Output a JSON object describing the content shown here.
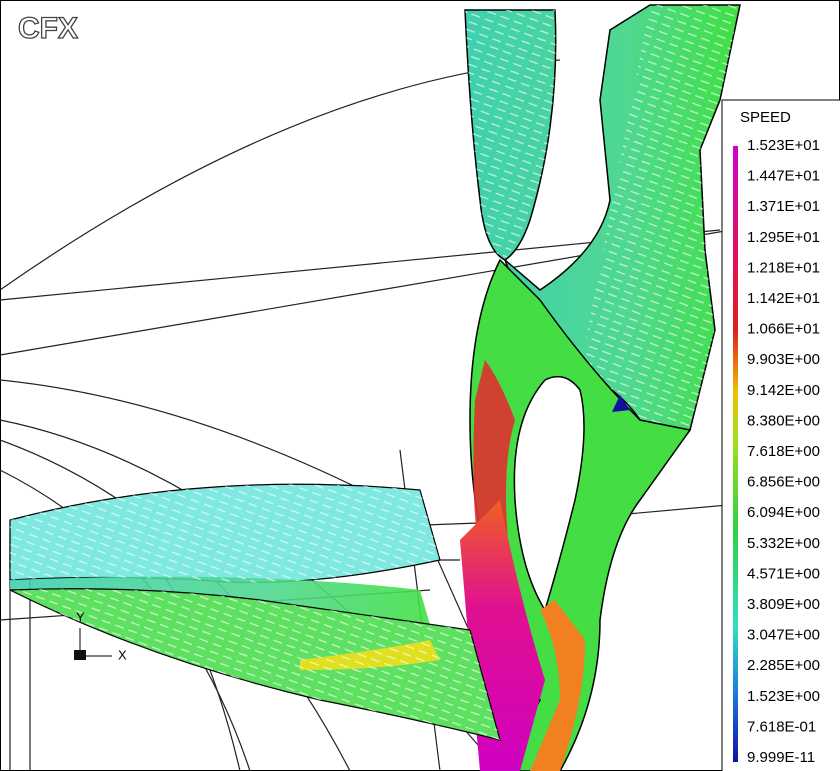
{
  "logo": "CFX",
  "legend": {
    "title": "SPEED",
    "labels": [
      "1.523E+01",
      "1.447E+01",
      "1.371E+01",
      "1.295E+01",
      "1.218E+01",
      "1.142E+01",
      "1.066E+01",
      "9.903E+00",
      "9.142E+00",
      "8.380E+00",
      "7.618E+00",
      "6.856E+00",
      "6.094E+00",
      "5.332E+00",
      "4.571E+00",
      "3.809E+00",
      "3.047E+00",
      "2.285E+00",
      "1.523E+00",
      "7.618E-01",
      "9.999E-11"
    ]
  },
  "axes": {
    "y": "Y",
    "x": "X"
  }
}
